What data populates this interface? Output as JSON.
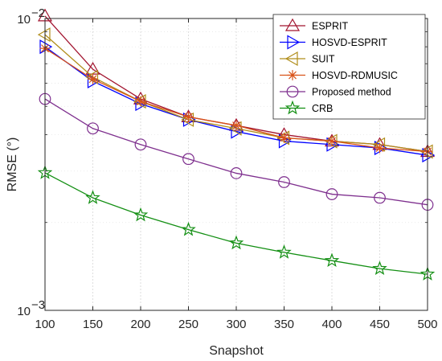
{
  "chart_data": {
    "type": "line",
    "xlabel": "Snapshot",
    "ylabel": "RMSE (°)",
    "x": [
      100,
      150,
      200,
      250,
      300,
      350,
      400,
      450,
      500
    ],
    "xlim": [
      100,
      500
    ],
    "ylim": [
      0.001,
      0.01
    ],
    "yscale": "log",
    "x_ticks": [
      "100",
      "150",
      "200",
      "250",
      "300",
      "350",
      "400",
      "450",
      "500"
    ],
    "y_tick_base": "10",
    "y_tick_exponents": [
      "-3",
      "-2"
    ],
    "grid": true,
    "legend_position": "top-right",
    "series": [
      {
        "name": "ESPRIT",
        "marker": "triangle-up",
        "color": "#a2142f",
        "values": [
          0.0102,
          0.0067,
          0.0053,
          0.0046,
          0.0043,
          0.004,
          0.0038,
          0.0037,
          0.0035
        ]
      },
      {
        "name": "HOSVD-ESPRIT",
        "marker": "triangle-right",
        "color": "#0000ff",
        "values": [
          0.008,
          0.0061,
          0.0051,
          0.0045,
          0.0041,
          0.0038,
          0.0037,
          0.0036,
          0.0034
        ]
      },
      {
        "name": "SUIT",
        "marker": "triangle-left",
        "color": "#b08d1a",
        "values": [
          0.0088,
          0.0063,
          0.0052,
          0.0045,
          0.0042,
          0.0039,
          0.0038,
          0.0037,
          0.0035
        ]
      },
      {
        "name": "HOSVD-RDMUSIC",
        "marker": "asterisk",
        "color": "#d95319",
        "values": [
          0.0079,
          0.0062,
          0.0052,
          0.0046,
          0.0043,
          0.0039,
          0.0038,
          0.0036,
          0.0035
        ]
      },
      {
        "name": "Proposed method",
        "marker": "circle",
        "color": "#7e2f8e",
        "values": [
          0.0053,
          0.0042,
          0.0037,
          0.0033,
          0.00295,
          0.00275,
          0.0025,
          0.00243,
          0.0023
        ]
      },
      {
        "name": "CRB",
        "marker": "pentagram",
        "color": "#138f13",
        "values": [
          0.00296,
          0.00243,
          0.00212,
          0.00189,
          0.0017,
          0.00158,
          0.00148,
          0.00139,
          0.00133
        ]
      }
    ]
  }
}
